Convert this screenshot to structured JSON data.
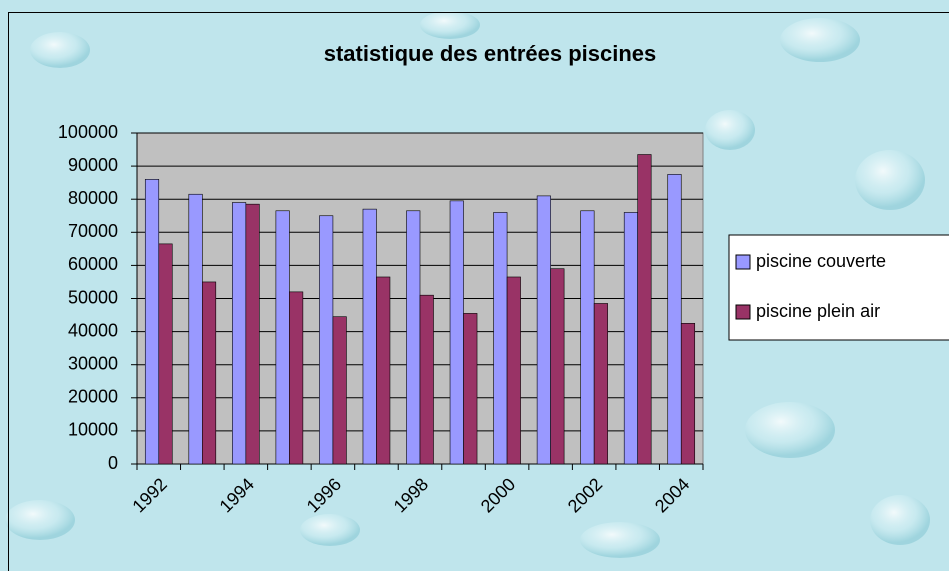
{
  "chart_data": {
    "type": "bar",
    "title": "statistique des entrées piscines",
    "categories": [
      "1992",
      null,
      "1994",
      null,
      "1996",
      null,
      "1998",
      null,
      "2000",
      null,
      "2002",
      null,
      "2004"
    ],
    "series": [
      {
        "name": "piscine couverte",
        "color": "#9999ff",
        "values": [
          86000,
          81500,
          79000,
          76500,
          75000,
          77000,
          76500,
          79500,
          76000,
          81000,
          76500,
          76000,
          87500
        ]
      },
      {
        "name": "piscine plein air",
        "color": "#993366",
        "values": [
          66500,
          55000,
          78500,
          52000,
          44500,
          56500,
          51000,
          45500,
          56500,
          59000,
          48500,
          93500,
          42500
        ]
      }
    ],
    "ylim": [
      0,
      100000
    ],
    "yticks": [
      0,
      10000,
      20000,
      30000,
      40000,
      50000,
      60000,
      70000,
      80000,
      90000,
      100000
    ],
    "grid": true,
    "legend": "right"
  }
}
